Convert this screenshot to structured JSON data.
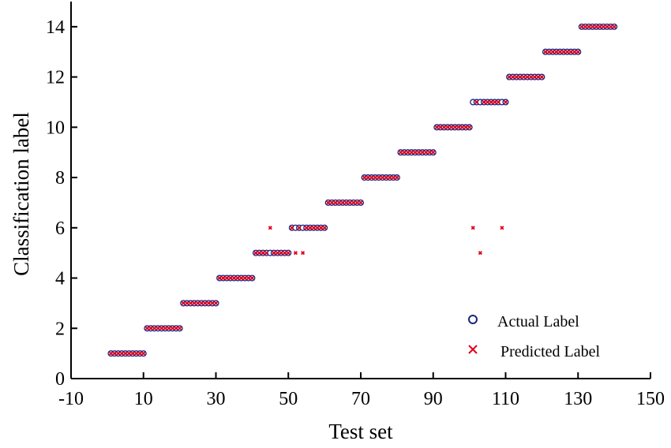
{
  "chart_data": {
    "type": "scatter",
    "xlabel": "Test set",
    "ylabel": "Classification label",
    "xlim": [
      -10,
      150
    ],
    "ylim": [
      0,
      15
    ],
    "xticks": [
      -10,
      10,
      30,
      50,
      70,
      90,
      110,
      130,
      150
    ],
    "yticks": [
      0,
      2,
      4,
      6,
      8,
      10,
      12,
      14
    ],
    "grid": false,
    "legend_position": "bottom-right",
    "colors": {
      "actual": "#1a237e",
      "predicted": "#e0001b"
    },
    "series": [
      {
        "name": "Actual Label",
        "marker": "circle",
        "class_runs": [
          {
            "label": 1,
            "from": 1,
            "to": 10
          },
          {
            "label": 2,
            "from": 11,
            "to": 20
          },
          {
            "label": 3,
            "from": 21,
            "to": 30
          },
          {
            "label": 4,
            "from": 31,
            "to": 40
          },
          {
            "label": 5,
            "from": 41,
            "to": 50
          },
          {
            "label": 6,
            "from": 51,
            "to": 60
          },
          {
            "label": 7,
            "from": 61,
            "to": 70
          },
          {
            "label": 8,
            "from": 71,
            "to": 80
          },
          {
            "label": 9,
            "from": 81,
            "to": 90
          },
          {
            "label": 10,
            "from": 91,
            "to": 100
          },
          {
            "label": 11,
            "from": 101,
            "to": 110
          },
          {
            "label": 12,
            "from": 111,
            "to": 120
          },
          {
            "label": 13,
            "from": 121,
            "to": 130
          },
          {
            "label": 14,
            "from": 131,
            "to": 140
          }
        ]
      },
      {
        "name": "Predicted Label",
        "marker": "x",
        "same_as_actual_except": [
          {
            "x": 45,
            "y": 6
          },
          {
            "x": 52,
            "y": 5
          },
          {
            "x": 54,
            "y": 5
          },
          {
            "x": 101,
            "y": 6
          },
          {
            "x": 103,
            "y": 5
          },
          {
            "x": 109,
            "y": 6
          }
        ]
      }
    ]
  }
}
